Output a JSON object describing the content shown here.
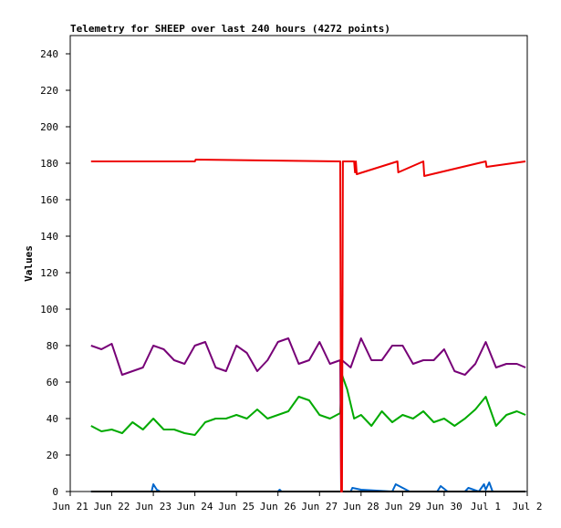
{
  "chart_data": {
    "type": "line",
    "title": "Telemetry for SHEEP over last 240 hours (4272 points)",
    "ylabel": "Values",
    "xlabel": "",
    "ylim": [
      0,
      250
    ],
    "yticks": [
      0,
      20,
      40,
      60,
      80,
      100,
      120,
      140,
      160,
      180,
      200,
      220,
      240
    ],
    "xlim": [
      "2021-06-21",
      "2021-07-02"
    ],
    "xticks": [
      {
        "label": "Jun 21",
        "x": "2021-06-21"
      },
      {
        "label": "Jun 22",
        "x": "2021-06-22"
      },
      {
        "label": "Jun 23",
        "x": "2021-06-23"
      },
      {
        "label": "Jun 24",
        "x": "2021-06-24"
      },
      {
        "label": "Jun 25",
        "x": "2021-06-25"
      },
      {
        "label": "Jun 26",
        "x": "2021-06-26"
      },
      {
        "label": "Jun 27",
        "x": "2021-06-27"
      },
      {
        "label": "Jun 28",
        "x": "2021-06-28"
      },
      {
        "label": "Jun 29",
        "x": "2021-06-29"
      },
      {
        "label": "Jun 30",
        "x": "2021-06-30"
      },
      {
        "label": "Jul 1",
        "x": "2021-07-01"
      },
      {
        "label": "Jul 2",
        "x": "2021-07-02"
      }
    ],
    "grid": false,
    "series": [
      {
        "color": "#ee0000",
        "x": [
          "2021-06-21 12:00",
          "2021-06-24 00:00",
          "2021-06-24 00:30",
          "2021-06-27 12:00",
          "2021-06-27 12:30",
          "2021-06-27 13:00",
          "2021-06-27 13:30",
          "2021-06-27 20:00",
          "2021-06-27 20:30",
          "2021-06-27 21:00",
          "2021-06-27 21:30",
          "2021-06-28 21:00",
          "2021-06-28 21:30",
          "2021-06-29 12:00",
          "2021-06-29 12:30",
          "2021-07-01 00:00",
          "2021-07-01 00:30",
          "2021-07-01 23:00"
        ],
        "y": [
          181,
          181,
          182,
          181,
          0,
          0,
          181,
          181,
          175,
          181,
          174,
          181,
          175,
          181,
          173,
          181,
          178,
          181
        ]
      },
      {
        "color": "#770077",
        "x": [
          "2021-06-21 12:00",
          "2021-06-21 18:00",
          "2021-06-22 00:00",
          "2021-06-22 06:00",
          "2021-06-22 12:00",
          "2021-06-22 18:00",
          "2021-06-23 00:00",
          "2021-06-23 06:00",
          "2021-06-23 12:00",
          "2021-06-23 18:00",
          "2021-06-24 00:00",
          "2021-06-24 06:00",
          "2021-06-24 12:00",
          "2021-06-24 18:00",
          "2021-06-25 00:00",
          "2021-06-25 06:00",
          "2021-06-25 12:00",
          "2021-06-25 18:00",
          "2021-06-26 00:00",
          "2021-06-26 06:00",
          "2021-06-26 12:00",
          "2021-06-26 18:00",
          "2021-06-27 00:00",
          "2021-06-27 06:00",
          "2021-06-27 12:00",
          "2021-06-27 12:30",
          "2021-06-27 13:00",
          "2021-06-27 18:00",
          "2021-06-28 00:00",
          "2021-06-28 06:00",
          "2021-06-28 12:00",
          "2021-06-28 18:00",
          "2021-06-29 00:00",
          "2021-06-29 06:00",
          "2021-06-29 12:00",
          "2021-06-29 18:00",
          "2021-06-30 00:00",
          "2021-06-30 06:00",
          "2021-06-30 12:00",
          "2021-06-30 18:00",
          "2021-07-01 00:00",
          "2021-07-01 06:00",
          "2021-07-01 12:00",
          "2021-07-01 18:00",
          "2021-07-01 23:00"
        ],
        "y": [
          80,
          78,
          81,
          64,
          66,
          68,
          80,
          78,
          72,
          70,
          80,
          82,
          68,
          66,
          80,
          76,
          66,
          72,
          82,
          84,
          70,
          72,
          82,
          70,
          72,
          0,
          72,
          68,
          84,
          72,
          72,
          80,
          80,
          70,
          72,
          72,
          78,
          66,
          64,
          70,
          82,
          68,
          70,
          70,
          68
        ]
      },
      {
        "color": "#00aa00",
        "x": [
          "2021-06-21 12:00",
          "2021-06-21 18:00",
          "2021-06-22 00:00",
          "2021-06-22 06:00",
          "2021-06-22 12:00",
          "2021-06-22 18:00",
          "2021-06-23 00:00",
          "2021-06-23 06:00",
          "2021-06-23 12:00",
          "2021-06-23 18:00",
          "2021-06-24 00:00",
          "2021-06-24 06:00",
          "2021-06-24 12:00",
          "2021-06-24 18:00",
          "2021-06-25 00:00",
          "2021-06-25 06:00",
          "2021-06-25 12:00",
          "2021-06-25 18:00",
          "2021-06-26 00:00",
          "2021-06-26 06:00",
          "2021-06-26 12:00",
          "2021-06-26 18:00",
          "2021-06-27 00:00",
          "2021-06-27 06:00",
          "2021-06-27 12:00",
          "2021-06-27 13:00",
          "2021-06-27 16:00",
          "2021-06-27 20:00",
          "2021-06-28 00:00",
          "2021-06-28 06:00",
          "2021-06-28 12:00",
          "2021-06-28 18:00",
          "2021-06-29 00:00",
          "2021-06-29 06:00",
          "2021-06-29 12:00",
          "2021-06-29 18:00",
          "2021-06-30 00:00",
          "2021-06-30 06:00",
          "2021-06-30 12:00",
          "2021-06-30 18:00",
          "2021-07-01 00:00",
          "2021-07-01 06:00",
          "2021-07-01 12:00",
          "2021-07-01 18:00",
          "2021-07-01 23:00"
        ],
        "y": [
          36,
          33,
          34,
          32,
          38,
          34,
          40,
          34,
          34,
          32,
          31,
          38,
          40,
          40,
          42,
          40,
          45,
          40,
          42,
          44,
          52,
          50,
          42,
          40,
          43,
          64,
          56,
          40,
          42,
          36,
          44,
          38,
          42,
          40,
          44,
          38,
          40,
          36,
          40,
          45,
          52,
          36,
          42,
          44,
          42
        ]
      },
      {
        "color": "#0066cc",
        "x": [
          "2021-06-21 12:00",
          "2021-06-22 23:00",
          "2021-06-23 00:00",
          "2021-06-23 02:00",
          "2021-06-23 04:00",
          "2021-06-26 00:00",
          "2021-06-26 01:00",
          "2021-06-26 02:00",
          "2021-06-27 18:00",
          "2021-06-27 19:00",
          "2021-06-28 00:00",
          "2021-06-28 18:00",
          "2021-06-28 20:00",
          "2021-06-29 02:00",
          "2021-06-29 04:00",
          "2021-06-29 20:00",
          "2021-06-29 22:00",
          "2021-06-30 02:00",
          "2021-06-30 12:00",
          "2021-06-30 14:00",
          "2021-06-30 20:00",
          "2021-06-30 23:00",
          "2021-07-01 00:00",
          "2021-07-01 02:00",
          "2021-07-01 04:00",
          "2021-07-01 23:00"
        ],
        "y": [
          0,
          0,
          4,
          1,
          0,
          0,
          1,
          0,
          0,
          2,
          1,
          0,
          4,
          1,
          0,
          0,
          3,
          0,
          0,
          2,
          0,
          4,
          1,
          5,
          0,
          0
        ]
      },
      {
        "color": "#000000",
        "x": [
          "2021-06-21 12:00",
          "2021-07-01 23:00"
        ],
        "y": [
          0,
          0
        ]
      }
    ]
  }
}
